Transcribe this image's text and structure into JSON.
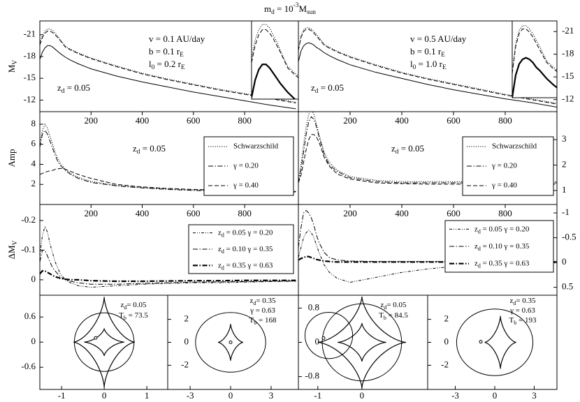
{
  "title": [
    "m",
    {
      "sub": "d"
    },
    " = 10",
    {
      "sup": "-3"
    },
    "M",
    {
      "sub": "sun"
    }
  ],
  "line_color": "#000000",
  "chart_data": [
    {
      "type": "line",
      "ylabel": [
        "M",
        {
          "sub": "V"
        }
      ],
      "x": [
        0,
        10,
        20,
        30,
        40,
        50,
        60,
        70,
        80,
        100,
        120,
        150,
        200,
        300,
        400,
        500,
        600,
        700,
        800,
        900,
        1000
      ],
      "xlim": [
        0,
        1010
      ],
      "ylim": [
        -22.9,
        -10.4
      ],
      "y_inverted": true,
      "yticks": [
        -21,
        -18,
        -15,
        -12
      ],
      "ytick_side": "left",
      "inset": {
        "xlim": [
          0,
          130
        ],
        "ylim": [
          -22,
          -17.5
        ]
      },
      "annotations": [
        [
          "v = 0.1 AU/day"
        ],
        [
          "b = 0.1 r",
          {
            "sub": "E"
          }
        ],
        [
          "l",
          {
            "sub": "0"
          },
          " = 0.2 r",
          {
            "sub": "E"
          }
        ],
        [
          "z",
          {
            "sub": "d"
          },
          " = 0.05"
        ]
      ],
      "series": [
        {
          "dash": "dashed",
          "values": [
            -19.6,
            -20.6,
            -21.2,
            -21.5,
            -21.5,
            -21.3,
            -21.0,
            -20.6,
            -20.2,
            -19.3,
            -18.9,
            -18.4,
            -17.7,
            -16.6,
            -15.6,
            -14.8,
            -14.1,
            -13.4,
            -12.8,
            -12.2,
            -11.6
          ]
        },
        {
          "dash": "dotted",
          "values": [
            -19.8,
            -20.9,
            -21.5,
            -21.8,
            -21.8,
            -21.6,
            -21.2,
            -20.8,
            -20.3,
            -19.4,
            -19.0,
            -18.5,
            -17.8,
            -16.7,
            -15.7,
            -14.9,
            -14.2,
            -13.5,
            -12.9,
            -12.3,
            -11.7
          ]
        },
        {
          "dash": "solid",
          "values": [
            -17.6,
            -18.6,
            -19.2,
            -19.5,
            -19.5,
            -19.3,
            -19.0,
            -18.7,
            -18.4,
            -17.9,
            -17.5,
            -17.0,
            -16.3,
            -15.3,
            -14.5,
            -13.8,
            -13.1,
            -12.5,
            -11.9,
            -11.3,
            -10.8
          ]
        }
      ]
    },
    {
      "type": "line",
      "x": [
        0,
        10,
        20,
        30,
        40,
        50,
        60,
        70,
        80,
        100,
        120,
        150,
        200,
        300,
        400,
        500,
        600,
        700,
        800,
        900,
        1000
      ],
      "xlim": [
        0,
        1000
      ],
      "ylim": [
        -22.4,
        -10.4
      ],
      "y_inverted": true,
      "yticks": [
        -21,
        -18,
        -15,
        -12
      ],
      "ytick_side": "right",
      "inset": {
        "xlim": [
          0,
          130
        ],
        "ylim": [
          -21.8,
          -17
        ]
      },
      "annotations": [
        [
          "v = 0.5 AU/day"
        ],
        [
          "b = 0.1 r",
          {
            "sub": "E"
          }
        ],
        [
          "l",
          {
            "sub": "0"
          },
          " = 1.0 r",
          {
            "sub": "E"
          }
        ],
        [
          "z",
          {
            "sub": "d"
          },
          " = 0.05"
        ]
      ],
      "series": [
        {
          "dash": "dashed",
          "values": [
            -18.5,
            -20.2,
            -21.0,
            -21.3,
            -21.3,
            -21.1,
            -20.8,
            -20.4,
            -20.0,
            -19.2,
            -18.8,
            -18.3,
            -17.6,
            -16.5,
            -15.5,
            -14.7,
            -14.0,
            -13.3,
            -12.6,
            -12.0,
            -11.4
          ]
        },
        {
          "dash": "dotted",
          "values": [
            -18.6,
            -20.4,
            -21.2,
            -21.5,
            -21.5,
            -21.3,
            -21.0,
            -20.6,
            -20.2,
            -19.3,
            -18.9,
            -18.4,
            -17.7,
            -16.6,
            -15.6,
            -14.8,
            -14.1,
            -13.4,
            -12.7,
            -12.1,
            -11.5
          ]
        },
        {
          "dash": "solid",
          "values": [
            -17.0,
            -18.4,
            -19.1,
            -19.4,
            -19.5,
            -19.4,
            -19.2,
            -18.9,
            -18.7,
            -18.2,
            -17.8,
            -17.3,
            -16.6,
            -15.6,
            -14.8,
            -14.0,
            -13.3,
            -12.7,
            -12.1,
            -11.6,
            -11.0
          ]
        }
      ]
    },
    {
      "type": "line",
      "ylabel": "Amp",
      "x": [
        0,
        10,
        20,
        30,
        40,
        50,
        60,
        70,
        80,
        100,
        120,
        150,
        200,
        300,
        400,
        500,
        600,
        700,
        800,
        900,
        1000
      ],
      "xlim": [
        0,
        1010
      ],
      "ylim": [
        0,
        9.25
      ],
      "xticks": [
        200,
        400,
        600,
        800
      ],
      "yticks": [
        2,
        4,
        6,
        8
      ],
      "ytick_side": "left",
      "legend": "right",
      "annotations": [
        [
          "z",
          {
            "sub": "d"
          },
          " = 0.05"
        ]
      ],
      "series": [
        {
          "name": "Schwarzschild",
          "dash": "dotted",
          "values": [
            6.0,
            7.4,
            8.0,
            7.6,
            6.8,
            6.0,
            5.2,
            4.6,
            4.1,
            3.5,
            3.1,
            2.7,
            2.3,
            1.9,
            1.7,
            1.55,
            1.45,
            1.4,
            1.35,
            1.3,
            1.3
          ]
        },
        {
          "name": "γ = 0.20",
          "dash": "dashdot",
          "values": [
            5.7,
            7.0,
            7.4,
            7.0,
            6.3,
            5.6,
            4.9,
            4.3,
            3.9,
            3.4,
            3.0,
            2.6,
            2.2,
            1.85,
            1.65,
            1.5,
            1.4,
            1.35,
            1.3,
            1.25,
            1.25
          ]
        },
        {
          "name": "γ = 0.40",
          "dash": "dashed",
          "values": [
            3.0,
            3.1,
            3.2,
            3.3,
            3.35,
            3.4,
            3.5,
            3.55,
            3.6,
            3.5,
            3.3,
            3.0,
            2.6,
            2.0,
            1.75,
            1.6,
            1.5,
            1.45,
            1.4,
            1.35,
            1.3
          ]
        }
      ]
    },
    {
      "type": "line",
      "x": [
        0,
        10,
        20,
        30,
        40,
        50,
        60,
        70,
        80,
        100,
        120,
        150,
        200,
        300,
        400,
        500,
        600,
        700,
        800,
        900,
        1000
      ],
      "xlim": [
        0,
        1000
      ],
      "ylim": [
        0.45,
        4.1
      ],
      "xticks": [
        200,
        400,
        600,
        800
      ],
      "yticks": [
        1,
        2,
        3
      ],
      "ytick_side": "right",
      "legend": "right",
      "annotations": [
        [
          "z",
          {
            "sub": "d"
          },
          " = 0.05"
        ]
      ],
      "series": [
        {
          "name": "Schwarzschild",
          "dash": "dotted",
          "values": [
            1.4,
            2.0,
            2.8,
            3.5,
            4.0,
            4.2,
            4.0,
            3.6,
            3.2,
            2.5,
            2.1,
            1.8,
            1.55,
            1.4,
            1.35,
            1.35,
            1.35,
            1.35,
            1.35,
            1.35,
            1.35
          ]
        },
        {
          "name": "γ = 0.20",
          "dash": "dashdot",
          "values": [
            1.3,
            1.8,
            2.5,
            3.2,
            3.7,
            3.9,
            3.8,
            3.5,
            3.1,
            2.4,
            2.0,
            1.75,
            1.5,
            1.35,
            1.3,
            1.3,
            1.3,
            1.3,
            1.3,
            1.3,
            1.3
          ]
        },
        {
          "name": "γ = 0.40",
          "dash": "dashed",
          "values": [
            1.3,
            1.6,
            2.1,
            2.6,
            3.0,
            3.2,
            3.2,
            3.1,
            2.9,
            2.3,
            1.95,
            1.65,
            1.45,
            1.3,
            1.27,
            1.25,
            1.25,
            1.25,
            1.25,
            1.25,
            1.25
          ]
        }
      ]
    },
    {
      "type": "line",
      "ylabel": [
        "ΔM",
        {
          "sub": "V"
        }
      ],
      "x": [
        0,
        10,
        20,
        30,
        40,
        50,
        60,
        70,
        80,
        100,
        120,
        150,
        200,
        300,
        400,
        500,
        600,
        700,
        800,
        900,
        1000
      ],
      "xlim": [
        0,
        1010
      ],
      "ylim": [
        -0.254,
        0.052
      ],
      "y_inverted": true,
      "xticks": [
        200,
        400,
        600,
        800
      ],
      "yticks": [
        -0.2,
        -0.1,
        0
      ],
      "ytick_side": "left",
      "legend": "right",
      "series": [
        {
          "name": [
            "z",
            {
              "sub": "d"
            },
            " = 0.05 γ = 0.20"
          ],
          "dash": "dashdotdot",
          "values": [
            -0.08,
            -0.15,
            -0.18,
            -0.16,
            -0.12,
            -0.09,
            -0.06,
            -0.04,
            -0.02,
            0.0,
            0.01,
            0.02,
            0.025,
            0.02,
            0.015,
            0.012,
            0.01,
            0.01,
            0.008,
            0.006,
            0.005
          ]
        },
        {
          "name": [
            "z",
            {
              "sub": "d"
            },
            " = 0.10 γ = 0.35"
          ],
          "dash": "dashdot",
          "values": [
            -0.06,
            -0.1,
            -0.1,
            -0.08,
            -0.06,
            -0.04,
            -0.03,
            -0.02,
            -0.01,
            0.0,
            0.005,
            0.01,
            0.015,
            0.015,
            0.012,
            0.01,
            0.008,
            0.007,
            0.006,
            0.005,
            0.004
          ]
        },
        {
          "name": [
            "z",
            {
              "sub": "d"
            },
            " = 0.35 γ = 0.63"
          ],
          "dash": "dashdot",
          "thick": true,
          "values": [
            -0.02,
            -0.03,
            -0.03,
            -0.025,
            -0.02,
            -0.015,
            -0.01,
            -0.008,
            -0.005,
            -0.002,
            0,
            0,
            0.003,
            0.005,
            0.005,
            0.004,
            0.003,
            0.003,
            0.002,
            0.002,
            0.002
          ]
        }
      ]
    },
    {
      "type": "line",
      "x": [
        0,
        10,
        20,
        30,
        40,
        50,
        60,
        70,
        80,
        100,
        120,
        150,
        200,
        300,
        400,
        500,
        600,
        700,
        800,
        900,
        1000
      ],
      "xlim": [
        0,
        1000
      ],
      "ylim": [
        -1.17,
        0.66
      ],
      "y_inverted": true,
      "xticks": [
        200,
        400,
        600,
        800
      ],
      "yticks": [
        -1,
        -0.5,
        0,
        0.5
      ],
      "ytick_side": "right",
      "legend": "right",
      "series": [
        {
          "name": [
            "z",
            {
              "sub": "d"
            },
            " = 0.05 γ = 0.20"
          ],
          "dash": "dashdotdot",
          "values": [
            -0.1,
            -0.3,
            -0.5,
            -0.6,
            -0.65,
            -0.6,
            -0.5,
            -0.35,
            -0.2,
            0.05,
            0.2,
            0.32,
            0.4,
            0.3,
            0.2,
            0.13,
            0.08,
            0.05,
            0.03,
            0.02,
            0.01
          ]
        },
        {
          "name": [
            "z",
            {
              "sub": "d"
            },
            " = 0.10 γ = 0.35"
          ],
          "dash": "dashdot",
          "values": [
            -0.3,
            -0.7,
            -1.0,
            -1.05,
            -1.0,
            -0.9,
            -0.75,
            -0.55,
            -0.4,
            -0.2,
            -0.1,
            -0.05,
            -0.03,
            -0.02,
            -0.02,
            -0.02,
            -0.02,
            -0.02,
            -0.02,
            -0.02,
            -0.02
          ]
        },
        {
          "name": [
            "z",
            {
              "sub": "d"
            },
            " = 0.35 γ = 0.63"
          ],
          "dash": "dashdot",
          "thick": true,
          "values": [
            -0.05,
            -0.08,
            -0.1,
            -0.12,
            -0.12,
            -0.1,
            -0.08,
            -0.06,
            -0.05,
            -0.03,
            -0.02,
            -0.01,
            -0.01,
            -0.01,
            -0.01,
            -0.01,
            -0.01,
            -0.01,
            -0.01,
            -0.01,
            -0.01
          ]
        }
      ]
    },
    {
      "type": "caustic",
      "xlim": [
        -1.51,
        1.49
      ],
      "ylim": [
        -1.13,
        1.12
      ],
      "xticks": [
        -1,
        0,
        1
      ],
      "yticks": [
        0.6,
        0,
        -0.6
      ],
      "ytick_side": "left",
      "annotations": [
        [
          "z",
          {
            "sub": "d"
          },
          "= 0.05"
        ],
        [
          "T",
          {
            "sub": "b"
          },
          " = 73.5"
        ]
      ],
      "circles": [
        {
          "x": 0,
          "y": 0,
          "r": 0.7
        }
      ],
      "caustics": [
        {
          "x": 0,
          "y": 0,
          "w": 0.72,
          "h": 1.08
        },
        {
          "x": 0,
          "y": 0,
          "w": 0.47,
          "h": 0.33
        }
      ],
      "source": {
        "x": -0.2,
        "y": 0.1
      }
    },
    {
      "type": "caustic",
      "xlim": [
        -4.66,
        5.02
      ],
      "ylim": [
        -4.1,
        4.1
      ],
      "xticks": [
        -3,
        0,
        3
      ],
      "yticks": [
        2,
        0,
        -2
      ],
      "ytick_side": "inside",
      "annotations": [
        [
          "z",
          {
            "sub": "d"
          },
          "= 0.35"
        ],
        [
          "γ = 0.63"
        ],
        [
          "T",
          {
            "sub": "b"
          },
          " = 168"
        ]
      ],
      "circles": [
        {
          "x": 0,
          "y": 0,
          "r": 2.6
        }
      ],
      "caustics": [
        {
          "x": 0,
          "y": 0,
          "w": 0.93,
          "h": 1.6
        }
      ],
      "source": {
        "x": 0,
        "y": 0
      }
    },
    {
      "type": "caustic",
      "xlim": [
        -1.44,
        1.49
      ],
      "ylim": [
        -1.1,
        1.1
      ],
      "xticks": [
        -1,
        0
      ],
      "yticks": [
        0.8,
        0,
        -0.8
      ],
      "ytick_side": "inside",
      "annotations": [
        [
          "z",
          {
            "sub": "d"
          },
          "= 0.05"
        ],
        [
          "T",
          {
            "sub": "b"
          },
          " = 84.5"
        ]
      ],
      "circles": [
        {
          "x": 0,
          "y": 0,
          "r": 0.9
        },
        {
          "x": -0.75,
          "y": 0.16,
          "r": 0.54
        }
      ],
      "caustics": [
        {
          "x": 0,
          "y": 0,
          "w": 1.0,
          "h": 1.07
        },
        {
          "x": 0,
          "y": 0,
          "w": 0.55,
          "h": 0.45
        }
      ],
      "source": {
        "x": -0.87,
        "y": 0.1
      }
    },
    {
      "type": "caustic",
      "xlim": [
        -5.1,
        4.73
      ],
      "ylim": [
        -4.1,
        4.1
      ],
      "xticks": [
        -3,
        0,
        3
      ],
      "yticks": [
        2,
        0,
        -2
      ],
      "ytick_side": "inside",
      "annotations": [
        [
          "z",
          {
            "sub": "d"
          },
          "= 0.35"
        ],
        [
          "γ = 0.63"
        ],
        [
          "T",
          {
            "sub": "b"
          },
          " = 193"
        ]
      ],
      "circles": [
        {
          "x": 0,
          "y": 0,
          "r": 2.9
        }
      ],
      "caustics": [
        {
          "x": 0.43,
          "y": 0,
          "w": 1.2,
          "h": 2.3
        }
      ],
      "source": {
        "x": -1.06,
        "y": 0.05
      }
    }
  ]
}
